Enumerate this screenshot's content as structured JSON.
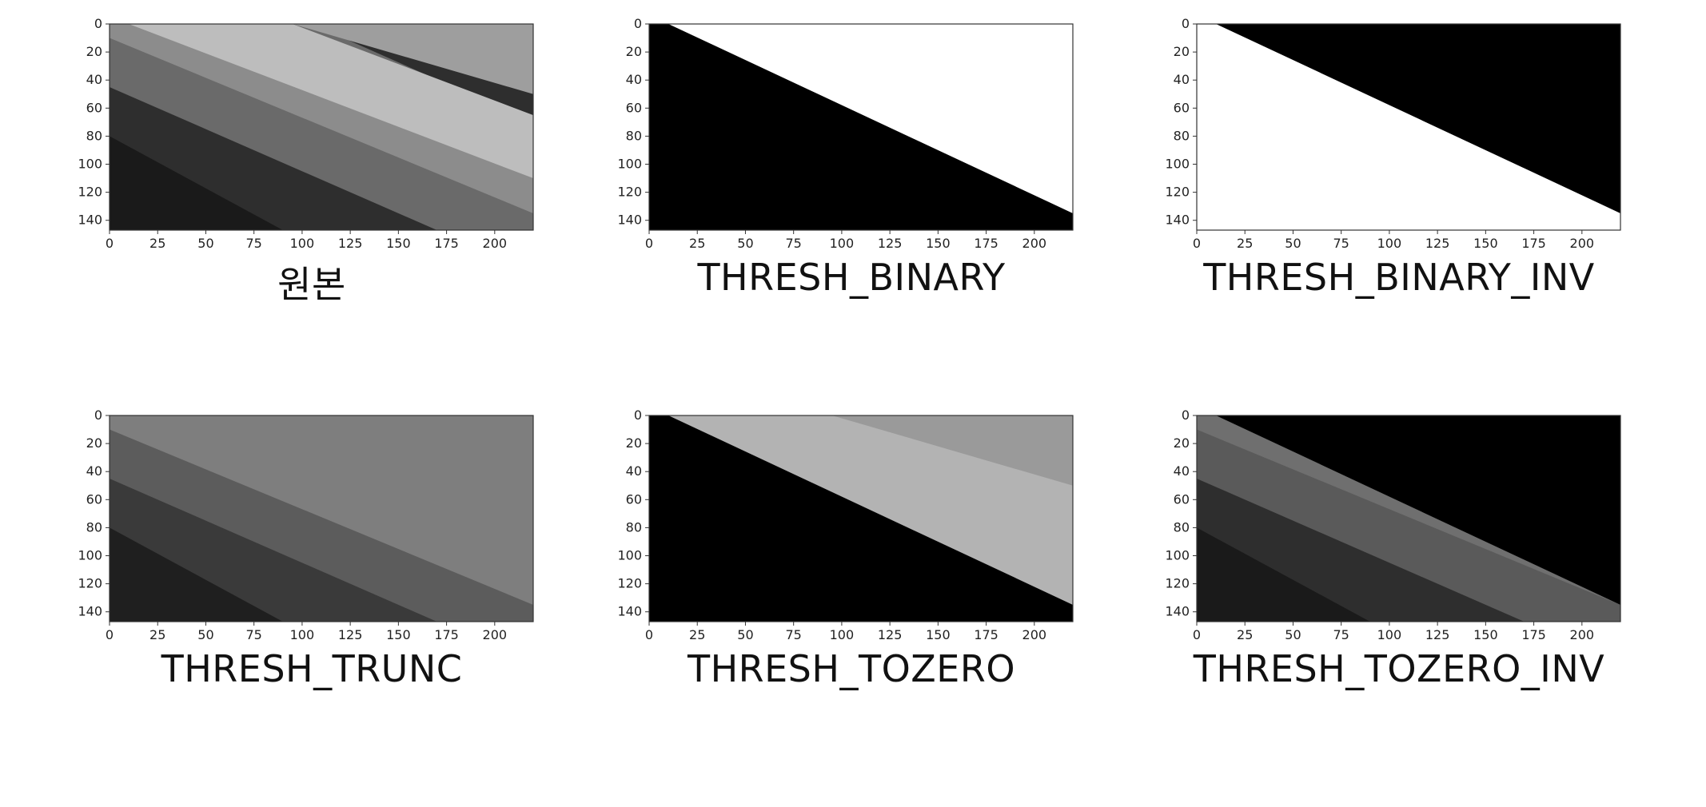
{
  "figure": {
    "panels": [
      {
        "caption": "원본",
        "variant": "original"
      },
      {
        "caption": "THRESH_BINARY",
        "variant": "binary"
      },
      {
        "caption": "THRESH_BINARY_INV",
        "variant": "binary_inv"
      },
      {
        "caption": "THRESH_TRUNC",
        "variant": "trunc"
      },
      {
        "caption": "THRESH_TOZERO",
        "variant": "tozero"
      },
      {
        "caption": "THRESH_TOZERO_INV",
        "variant": "tozero_inv"
      }
    ],
    "x_ticks": [
      "0",
      "25",
      "50",
      "75",
      "100",
      "125",
      "150",
      "175",
      "200"
    ],
    "y_ticks": [
      "0",
      "20",
      "40",
      "60",
      "80",
      "100",
      "120",
      "140"
    ],
    "x_extent": [
      0,
      220
    ],
    "y_extent": [
      0,
      147
    ],
    "colors": {
      "white": "#ffffff",
      "black": "#000000",
      "light_gray": "#d8d8d8",
      "mid_gray": "#8a8a8a",
      "dark_gray": "#3e3e3e",
      "trunc_gray": "#7e7e7e"
    }
  }
}
